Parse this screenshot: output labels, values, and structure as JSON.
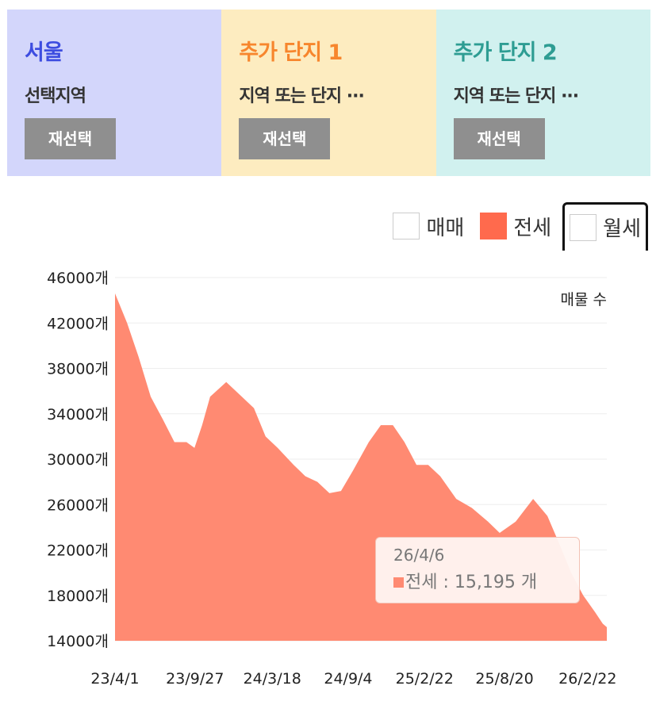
{
  "panels": [
    {
      "title": "서울",
      "subtitle": "선택지역",
      "button": "재선택",
      "bg": "#d3d6fb",
      "color": "#3d4de0"
    },
    {
      "title": "추가 단지 1",
      "subtitle": "지역 또는 단지 ···",
      "button": "재선택",
      "bg": "#fdecc0",
      "color": "#f7862d"
    },
    {
      "title": "추가 단지 2",
      "subtitle": "지역 또는 단지 ···",
      "button": "재선택",
      "bg": "#d1f1ef",
      "color": "#2e9d93"
    }
  ],
  "legend": [
    {
      "label": "매매",
      "checked": false,
      "color": "#ffffff"
    },
    {
      "label": "전세",
      "checked": true,
      "color": "#ff6a4d"
    },
    {
      "label": "월세",
      "checked": false,
      "color": "#ffffff"
    }
  ],
  "tooltip": {
    "date": "26/4/6",
    "series": "전세",
    "value_text": " : 15,195 개"
  },
  "chart_data": {
    "type": "area",
    "series_name": "전세",
    "color": "#ff8a72",
    "ylabel": "매물 수",
    "y_unit": "개",
    "ylim": [
      14000,
      46000
    ],
    "yticks": [
      14000,
      18000,
      22000,
      26000,
      30000,
      34000,
      38000,
      42000,
      46000
    ],
    "xticks": [
      "23/4/1",
      "23/9/27",
      "24/3/18",
      "24/9/4",
      "25/2/22",
      "25/8/20",
      "26/2/22"
    ],
    "grid": true,
    "points": [
      [
        "23/4/1",
        44600
      ],
      [
        "23/4/28",
        42000
      ],
      [
        "23/5/24",
        39000
      ],
      [
        "23/6/20",
        35500
      ],
      [
        "23/7/17",
        33500
      ],
      [
        "23/8/12",
        31500
      ],
      [
        "23/9/8",
        31500
      ],
      [
        "23/9/26",
        31000
      ],
      [
        "23/10/13",
        33000
      ],
      [
        "23/10/31",
        35500
      ],
      [
        "23/12/6",
        36800
      ],
      [
        "24/1/10",
        35500
      ],
      [
        "24/2/6",
        34500
      ],
      [
        "24/3/3",
        32000
      ],
      [
        "24/3/30",
        31000
      ],
      [
        "24/5/5",
        29500
      ],
      [
        "24/5/31",
        28500
      ],
      [
        "24/6/27",
        28000
      ],
      [
        "24/7/24",
        27000
      ],
      [
        "24/8/19",
        27200
      ],
      [
        "24/9/15",
        29000
      ],
      [
        "24/10/20",
        31500
      ],
      [
        "24/11/16",
        33000
      ],
      [
        "24/12/13",
        33000
      ],
      [
        "25/1/8",
        31500
      ],
      [
        "25/2/4",
        29500
      ],
      [
        "25/3/2",
        29500
      ],
      [
        "25/3/29",
        28500
      ],
      [
        "25/5/4",
        26500
      ],
      [
        "25/6/8",
        25700
      ],
      [
        "25/7/14",
        24500
      ],
      [
        "25/8/9",
        23500
      ],
      [
        "25/9/14",
        24500
      ],
      [
        "25/10/23",
        26500
      ],
      [
        "25/11/24",
        25000
      ],
      [
        "25/12/21",
        22500
      ],
      [
        "26/1/16",
        20000
      ],
      [
        "26/2/12",
        18000
      ],
      [
        "26/3/11",
        16500
      ],
      [
        "26/3/28",
        15500
      ],
      [
        "26/4/6",
        15195
      ]
    ]
  }
}
